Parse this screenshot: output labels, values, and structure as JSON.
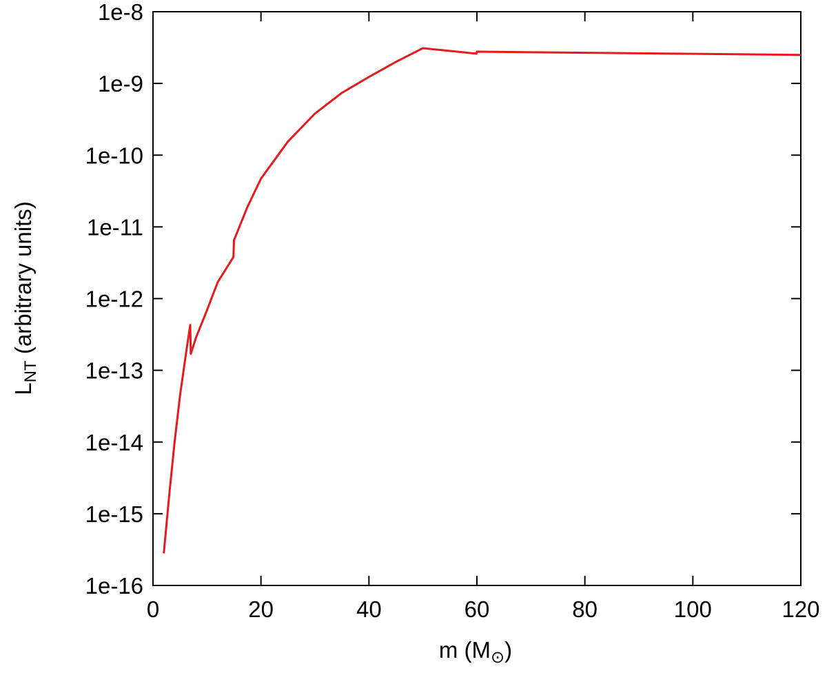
{
  "chart_data": {
    "type": "line",
    "log_y": true,
    "grid": false,
    "ylabel_parts": [
      "L",
      "NT",
      " (arbitrary units)"
    ],
    "xlabel_parts": [
      "m (M",
      "⊙",
      ")"
    ],
    "xlim": [
      0,
      120
    ],
    "xticks": [
      0,
      20,
      40,
      60,
      80,
      100,
      120
    ],
    "ylim": [
      1e-16,
      1e-08
    ],
    "yticks": [
      {
        "value": 1e-16,
        "label": "1e-16"
      },
      {
        "value": 1e-15,
        "label": "1e-15"
      },
      {
        "value": 1e-14,
        "label": "1e-14"
      },
      {
        "value": 1e-13,
        "label": "1e-13"
      },
      {
        "value": 1e-12,
        "label": "1e-12"
      },
      {
        "value": 1e-11,
        "label": "1e-11"
      },
      {
        "value": 1e-10,
        "label": "1e-10"
      },
      {
        "value": 1e-09,
        "label": "1e-9"
      },
      {
        "value": 1e-08,
        "label": "1e-8"
      }
    ],
    "x": [
      2,
      3,
      4,
      5,
      6,
      6.9,
      7,
      8,
      10,
      12,
      14.9,
      15,
      17.5,
      20,
      25,
      30,
      35,
      40,
      45,
      50,
      59.9,
      60,
      120
    ],
    "series": [
      {
        "color": "#e41a1c",
        "values": [
          2.8e-16,
          1.8e-15,
          1e-14,
          4.4e-14,
          1.5e-13,
          4.3e-13,
          1.7e-13,
          2.9e-13,
          6.9e-13,
          1.7e-12,
          3.8e-12,
          6.5e-12,
          1.9e-11,
          4.7e-11,
          1.55e-10,
          3.8e-10,
          7.4e-10,
          1.23e-09,
          2e-09,
          3.1e-09,
          2.6e-09,
          2.77e-09,
          2.5e-09
        ]
      }
    ]
  }
}
